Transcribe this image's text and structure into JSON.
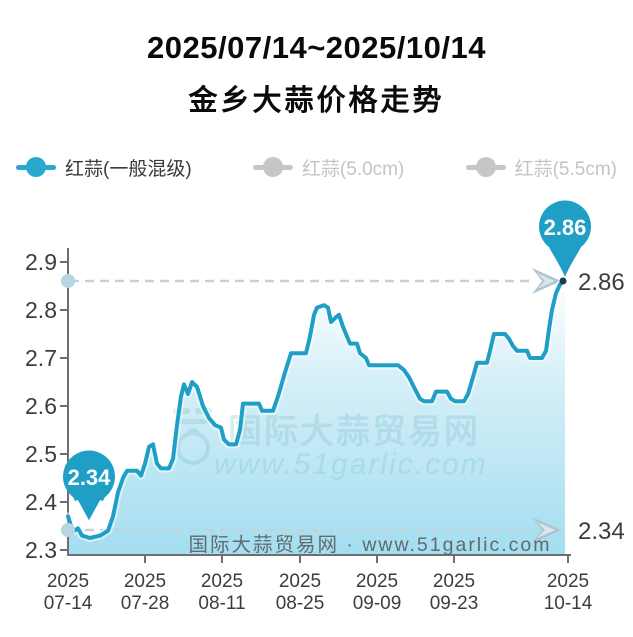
{
  "header": {
    "date_range": "2025/07/14~2025/10/14",
    "title": "金乡大蒜价格走势"
  },
  "legend": {
    "items": [
      {
        "label": "红蒜(一般混级)",
        "active": true,
        "color": "#2ba8ce",
        "text_color": "#3a3a3a"
      },
      {
        "label": "红蒜(5.0cm)",
        "active": false,
        "color": "#c6c6c6",
        "text_color": "#c4c4c4"
      },
      {
        "label": "红蒜(5.5cm)",
        "active": false,
        "color": "#c6c6c6",
        "text_color": "#c4c4c4"
      }
    ]
  },
  "colors": {
    "line": "#1f9fc5",
    "balloon": "#1f9fc5",
    "area_top": "#ffffff",
    "area_bottom": "#a3def0",
    "dashed_line": "#c0d2da",
    "arrow": "#aec5d1",
    "axis": "#6f6f6f",
    "tick_text": "#3d3d3d",
    "watermark_teal": "#7fbfcc",
    "bottom_watermark_gray": "#5f6b6e"
  },
  "chart_data": {
    "type": "area",
    "title": "金乡大蒜价格走势",
    "series_name": "红蒜(一般混级)",
    "ylim": [
      2.3,
      2.9
    ],
    "grid": false,
    "legend_position": "top",
    "y_ticks": [
      "2.9",
      "2.8",
      "2.7",
      "2.6",
      "2.5",
      "2.4",
      "2.3"
    ],
    "x_ticks": [
      {
        "year": "2025",
        "date": "07-14"
      },
      {
        "year": "2025",
        "date": "07-28"
      },
      {
        "year": "2025",
        "date": "08-11"
      },
      {
        "year": "2025",
        "date": "08-25"
      },
      {
        "year": "2025",
        "date": "09-09"
      },
      {
        "year": "2025",
        "date": "09-23"
      },
      {
        "year": "2025",
        "date": "10-14"
      }
    ],
    "start_point": {
      "date": "07-14",
      "value": 2.34
    },
    "end_point": {
      "date": "10-14",
      "value": 2.86
    },
    "points": [
      [
        68,
        2.37
      ],
      [
        71,
        2.35
      ],
      [
        74,
        2.34
      ],
      [
        78,
        2.345
      ],
      [
        82,
        2.33
      ],
      [
        90,
        2.325
      ],
      [
        100,
        2.33
      ],
      [
        108,
        2.34
      ],
      [
        113,
        2.37
      ],
      [
        118,
        2.42
      ],
      [
        123,
        2.45
      ],
      [
        127,
        2.465
      ],
      [
        137,
        2.465
      ],
      [
        141,
        2.455
      ],
      [
        145,
        2.48
      ],
      [
        149,
        2.515
      ],
      [
        153,
        2.52
      ],
      [
        157,
        2.48
      ],
      [
        161,
        2.47
      ],
      [
        169,
        2.47
      ],
      [
        173,
        2.49
      ],
      [
        177,
        2.56
      ],
      [
        181,
        2.62
      ],
      [
        184,
        2.645
      ],
      [
        188,
        2.625
      ],
      [
        192,
        2.65
      ],
      [
        197,
        2.64
      ],
      [
        203,
        2.6
      ],
      [
        209,
        2.575
      ],
      [
        215,
        2.56
      ],
      [
        221,
        2.555
      ],
      [
        224,
        2.53
      ],
      [
        229,
        2.52
      ],
      [
        236,
        2.52
      ],
      [
        240,
        2.55
      ],
      [
        243,
        2.605
      ],
      [
        259,
        2.605
      ],
      [
        262,
        2.59
      ],
      [
        273,
        2.59
      ],
      [
        278,
        2.62
      ],
      [
        285,
        2.67
      ],
      [
        291,
        2.71
      ],
      [
        306,
        2.71
      ],
      [
        310,
        2.745
      ],
      [
        314,
        2.79
      ],
      [
        317,
        2.805
      ],
      [
        324,
        2.81
      ],
      [
        328,
        2.805
      ],
      [
        331,
        2.775
      ],
      [
        336,
        2.785
      ],
      [
        339,
        2.79
      ],
      [
        343,
        2.765
      ],
      [
        347,
        2.745
      ],
      [
        350,
        2.73
      ],
      [
        357,
        2.73
      ],
      [
        360,
        2.71
      ],
      [
        366,
        2.7
      ],
      [
        369,
        2.685
      ],
      [
        398,
        2.685
      ],
      [
        404,
        2.675
      ],
      [
        409,
        2.66
      ],
      [
        415,
        2.635
      ],
      [
        420,
        2.615
      ],
      [
        424,
        2.61
      ],
      [
        432,
        2.61
      ],
      [
        436,
        2.63
      ],
      [
        447,
        2.63
      ],
      [
        451,
        2.615
      ],
      [
        455,
        2.61
      ],
      [
        464,
        2.61
      ],
      [
        468,
        2.625
      ],
      [
        473,
        2.66
      ],
      [
        477,
        2.69
      ],
      [
        487,
        2.69
      ],
      [
        490,
        2.715
      ],
      [
        494,
        2.75
      ],
      [
        505,
        2.75
      ],
      [
        509,
        2.74
      ],
      [
        513,
        2.725
      ],
      [
        517,
        2.715
      ],
      [
        527,
        2.715
      ],
      [
        530,
        2.7
      ],
      [
        542,
        2.7
      ],
      [
        546,
        2.715
      ],
      [
        549,
        2.76
      ],
      [
        552,
        2.8
      ],
      [
        556,
        2.835
      ],
      [
        560,
        2.853
      ],
      [
        563,
        2.86
      ]
    ]
  },
  "annotations": {
    "start_badge": "2.34",
    "end_badge": "2.86",
    "max_value": "2.86",
    "min_value": "2.34"
  },
  "watermark": {
    "site_name": "国际大蒜贸易网",
    "url": "www.51garlic.com",
    "bottom_line": "国际大蒜贸易网 · www.51garlic.com"
  }
}
